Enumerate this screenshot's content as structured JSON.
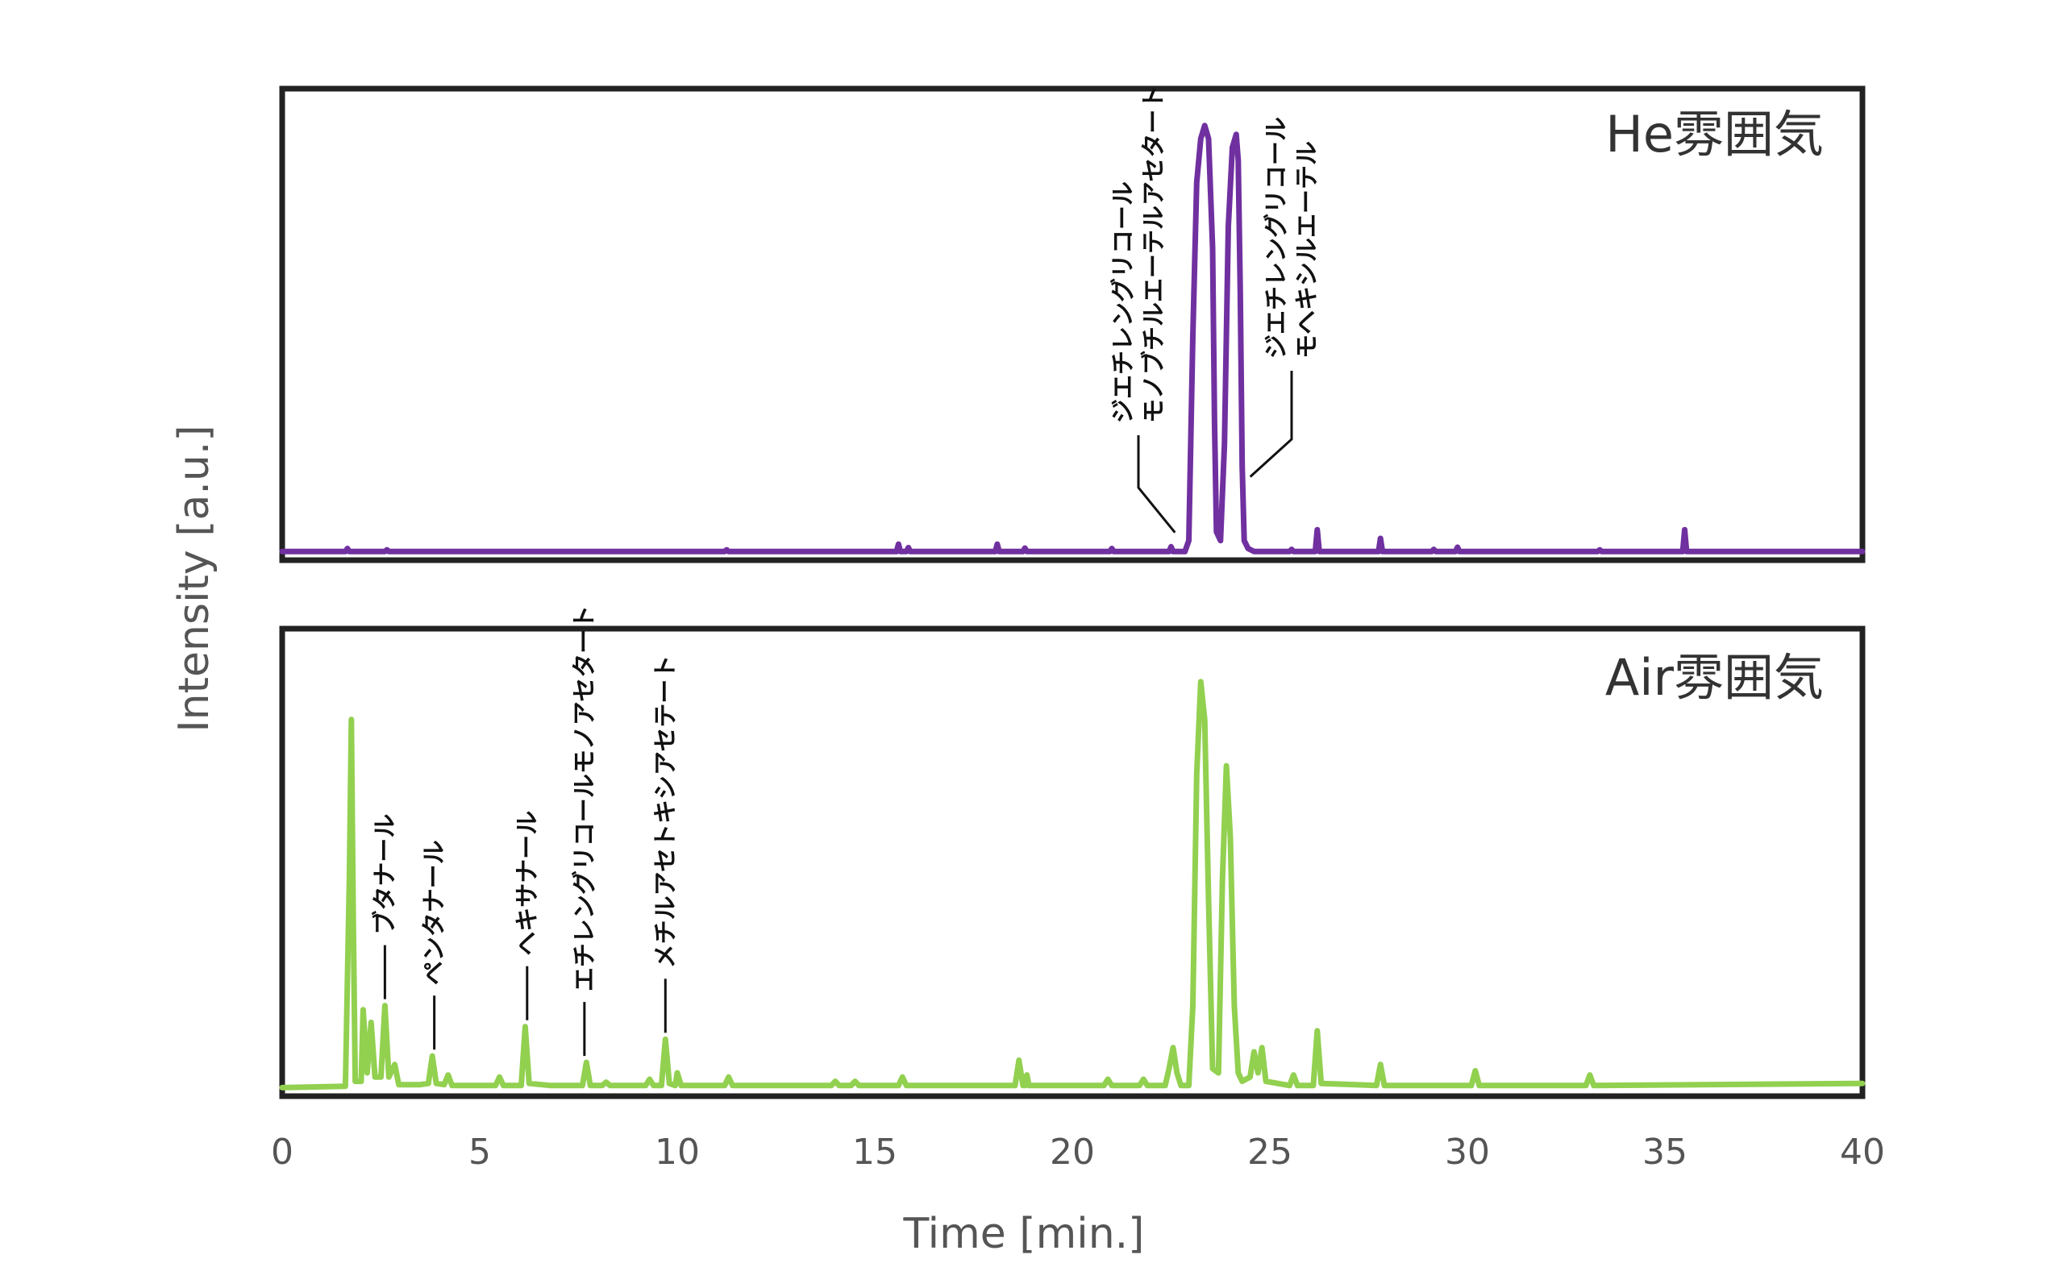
{
  "chart_data": [
    {
      "type": "line",
      "panel": "top",
      "title": "He雰囲気",
      "xlabel": "Time [min.]",
      "ylabel": "Intensity [a.u.]",
      "xlim": [
        0,
        40
      ],
      "ylim": [
        0,
        100
      ],
      "x_ticks": [
        "0",
        "5",
        "10",
        "15",
        "20",
        "25",
        "30",
        "35",
        "40"
      ],
      "legend": "none",
      "grid": false,
      "series": [
        {
          "color": "#7030a0",
          "points": [
            [
              0,
              0.5
            ],
            [
              1.6,
              0.5
            ],
            [
              1.65,
              1.2
            ],
            [
              1.7,
              0.5
            ],
            [
              2.6,
              0.5
            ],
            [
              2.65,
              0.9
            ],
            [
              2.7,
              0.5
            ],
            [
              11.2,
              0.5
            ],
            [
              11.25,
              0.9
            ],
            [
              11.3,
              0.5
            ],
            [
              15.55,
              0.5
            ],
            [
              15.6,
              2.2
            ],
            [
              15.65,
              0.5
            ],
            [
              15.8,
              0.5
            ],
            [
              15.85,
              1.4
            ],
            [
              15.9,
              0.5
            ],
            [
              18.05,
              0.5
            ],
            [
              18.1,
              2.2
            ],
            [
              18.15,
              0.5
            ],
            [
              18.75,
              0.5
            ],
            [
              18.8,
              1.3
            ],
            [
              18.85,
              0.5
            ],
            [
              20.95,
              0.5
            ],
            [
              21.0,
              1.2
            ],
            [
              21.05,
              0.5
            ],
            [
              22.45,
              0.5
            ],
            [
              22.5,
              1.6
            ],
            [
              22.55,
              0.5
            ],
            [
              22.85,
              0.5
            ],
            [
              22.95,
              3
            ],
            [
              23.05,
              50
            ],
            [
              23.15,
              85
            ],
            [
              23.25,
              95
            ],
            [
              23.35,
              98
            ],
            [
              23.45,
              95
            ],
            [
              23.55,
              70
            ],
            [
              23.6,
              30
            ],
            [
              23.65,
              5
            ],
            [
              23.75,
              3
            ],
            [
              23.85,
              25
            ],
            [
              23.95,
              75
            ],
            [
              24.05,
              93
            ],
            [
              24.15,
              96
            ],
            [
              24.2,
              90
            ],
            [
              24.25,
              60
            ],
            [
              24.3,
              20
            ],
            [
              24.35,
              3
            ],
            [
              24.45,
              1.2
            ],
            [
              24.6,
              0.5
            ],
            [
              25.5,
              0.5
            ],
            [
              25.55,
              1.0
            ],
            [
              25.6,
              0.5
            ],
            [
              26.15,
              0.5
            ],
            [
              26.2,
              5.5
            ],
            [
              26.25,
              0.5
            ],
            [
              27.75,
              0.5
            ],
            [
              27.8,
              3.5
            ],
            [
              27.85,
              0.5
            ],
            [
              29.1,
              0.5
            ],
            [
              29.15,
              1.0
            ],
            [
              29.2,
              0.5
            ],
            [
              29.7,
              0.5
            ],
            [
              29.75,
              1.5
            ],
            [
              29.8,
              0.5
            ],
            [
              33.3,
              0.5
            ],
            [
              33.35,
              0.9
            ],
            [
              33.4,
              0.5
            ],
            [
              35.45,
              0.5
            ],
            [
              35.5,
              5.5
            ],
            [
              35.55,
              0.5
            ],
            [
              40,
              0.5
            ]
          ]
        }
      ],
      "annotations": [
        {
          "lines": [
            "ジエチレングリコール",
            "モノブチルエーテルアセタート"
          ],
          "x": 22.7,
          "y": 3
        },
        {
          "lines": [
            "ジエチレングリコール",
            "モヘキシルエーテル"
          ],
          "x": 24.3,
          "y": 25
        }
      ]
    },
    {
      "type": "line",
      "panel": "bottom",
      "title": "Air雰囲気",
      "xlabel": "Time [min.]",
      "ylabel": "Intensity [a.u.]",
      "xlim": [
        0,
        40
      ],
      "ylim": [
        0,
        100
      ],
      "x_ticks": [
        "0",
        "5",
        "10",
        "15",
        "20",
        "25",
        "30",
        "35",
        "40"
      ],
      "legend": "none",
      "grid": false,
      "series": [
        {
          "color": "#92d050",
          "points": [
            [
              0,
              0.5
            ],
            [
              1.6,
              0.8
            ],
            [
              1.7,
              50
            ],
            [
              1.75,
              88
            ],
            [
              1.8,
              40
            ],
            [
              1.85,
              2
            ],
            [
              2.0,
              2
            ],
            [
              2.05,
              19
            ],
            [
              2.15,
              4
            ],
            [
              2.25,
              16
            ],
            [
              2.35,
              3
            ],
            [
              2.5,
              3
            ],
            [
              2.6,
              20
            ],
            [
              2.7,
              3
            ],
            [
              2.85,
              6
            ],
            [
              2.95,
              1.2
            ],
            [
              3.5,
              1.2
            ],
            [
              3.7,
              1.5
            ],
            [
              3.8,
              8
            ],
            [
              3.9,
              1.5
            ],
            [
              4.1,
              1.2
            ],
            [
              4.2,
              3.5
            ],
            [
              4.3,
              1
            ],
            [
              5.4,
              1
            ],
            [
              5.5,
              3
            ],
            [
              5.6,
              1
            ],
            [
              6.05,
              1
            ],
            [
              6.15,
              15
            ],
            [
              6.25,
              1.5
            ],
            [
              6.8,
              1
            ],
            [
              7.6,
              1
            ],
            [
              7.7,
              6.5
            ],
            [
              7.8,
              1
            ],
            [
              8.1,
              1
            ],
            [
              8.2,
              1.8
            ],
            [
              8.3,
              1
            ],
            [
              9.2,
              1
            ],
            [
              9.3,
              2.5
            ],
            [
              9.4,
              1
            ],
            [
              9.6,
              1
            ],
            [
              9.7,
              12
            ],
            [
              9.8,
              1.5
            ],
            [
              9.95,
              1
            ],
            [
              10.0,
              4
            ],
            [
              10.1,
              1
            ],
            [
              11.2,
              1
            ],
            [
              11.3,
              3
            ],
            [
              11.4,
              1
            ],
            [
              12.5,
              1
            ],
            [
              13.9,
              1
            ],
            [
              14.0,
              2
            ],
            [
              14.1,
              1
            ],
            [
              14.4,
              1
            ],
            [
              14.5,
              2
            ],
            [
              14.6,
              1
            ],
            [
              15.6,
              1
            ],
            [
              15.7,
              3
            ],
            [
              15.8,
              1
            ],
            [
              18.55,
              1
            ],
            [
              18.65,
              7
            ],
            [
              18.75,
              1
            ],
            [
              18.8,
              1
            ],
            [
              18.85,
              3.5
            ],
            [
              18.9,
              1
            ],
            [
              20.8,
              1
            ],
            [
              20.9,
              2.5
            ],
            [
              21.0,
              1
            ],
            [
              21.7,
              1
            ],
            [
              21.8,
              2.5
            ],
            [
              21.9,
              1
            ],
            [
              22.35,
              1
            ],
            [
              22.45,
              5
            ],
            [
              22.55,
              10
            ],
            [
              22.65,
              4
            ],
            [
              22.75,
              1
            ],
            [
              22.95,
              1
            ],
            [
              23.05,
              20
            ],
            [
              23.15,
              75
            ],
            [
              23.25,
              97
            ],
            [
              23.35,
              88
            ],
            [
              23.45,
              45
            ],
            [
              23.55,
              5
            ],
            [
              23.7,
              4
            ],
            [
              23.8,
              50
            ],
            [
              23.9,
              77
            ],
            [
              24.0,
              60
            ],
            [
              24.1,
              20
            ],
            [
              24.2,
              4
            ],
            [
              24.3,
              2
            ],
            [
              24.5,
              3
            ],
            [
              24.6,
              9
            ],
            [
              24.7,
              4
            ],
            [
              24.8,
              10
            ],
            [
              24.9,
              2
            ],
            [
              25.5,
              1
            ],
            [
              25.6,
              3.5
            ],
            [
              25.7,
              1
            ],
            [
              26.1,
              1
            ],
            [
              26.2,
              14
            ],
            [
              26.3,
              1.5
            ],
            [
              27.7,
              1
            ],
            [
              27.8,
              6
            ],
            [
              27.9,
              1
            ],
            [
              30.1,
              1
            ],
            [
              30.2,
              4.5
            ],
            [
              30.3,
              1
            ],
            [
              33.0,
              1
            ],
            [
              33.1,
              3.5
            ],
            [
              33.2,
              1
            ],
            [
              40,
              1.5
            ]
          ]
        }
      ],
      "annotations": [
        {
          "lines": [
            "ブタナール"
          ],
          "x": 2.6,
          "y": 20
        },
        {
          "lines": [
            "ペンタナール"
          ],
          "x": 3.85,
          "y": 8
        },
        {
          "lines": [
            "ヘキサナール"
          ],
          "x": 6.2,
          "y": 15
        },
        {
          "lines": [
            "エチレングリコールモノアセタート"
          ],
          "x": 7.65,
          "y": 6.5
        },
        {
          "lines": [
            "メチルアセトキシアセテート"
          ],
          "x": 9.7,
          "y": 12
        }
      ]
    }
  ]
}
